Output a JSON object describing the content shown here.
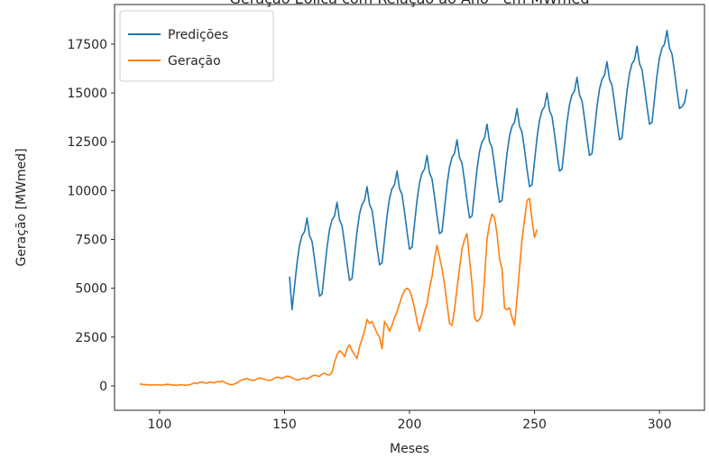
{
  "chart_data": {
    "type": "line",
    "title": "Geração Eólica com Relação ao Ano - em MWmed",
    "xlabel": "Meses",
    "ylabel": "Geração [MWmed]",
    "xlim": [
      82,
      318
    ],
    "ylim": [
      -1250,
      19530
    ],
    "xticks": [
      100,
      150,
      200,
      250,
      300
    ],
    "yticks": [
      0,
      2500,
      5000,
      7500,
      10000,
      12500,
      15000,
      17500
    ],
    "grid": false,
    "legend": "upper left",
    "series": [
      {
        "name": "Predições",
        "color": "#1f77b4",
        "x": [
          152,
          153,
          154,
          155,
          156,
          157,
          158,
          159,
          160,
          161,
          162,
          163,
          164,
          165,
          166,
          167,
          168,
          169,
          170,
          171,
          172,
          173,
          174,
          175,
          176,
          177,
          178,
          179,
          180,
          181,
          182,
          183,
          184,
          185,
          186,
          187,
          188,
          189,
          190,
          191,
          192,
          193,
          194,
          195,
          196,
          197,
          198,
          199,
          200,
          201,
          202,
          203,
          204,
          205,
          206,
          207,
          208,
          209,
          210,
          211,
          212,
          213,
          214,
          215,
          216,
          217,
          218,
          219,
          220,
          221,
          222,
          223,
          224,
          225,
          226,
          227,
          228,
          229,
          230,
          231,
          232,
          233,
          234,
          235,
          236,
          237,
          238,
          239,
          240,
          241,
          242,
          243,
          244,
          245,
          246,
          247,
          248,
          249,
          250,
          251,
          252,
          253,
          254,
          255,
          256,
          257,
          258,
          259,
          260,
          261,
          262,
          263,
          264,
          265,
          266,
          267,
          268,
          269,
          270,
          271,
          272,
          273,
          274,
          275,
          276,
          277,
          278,
          279,
          280,
          281,
          282,
          283,
          284,
          285,
          286,
          287,
          288,
          289,
          290,
          291,
          292,
          293,
          294,
          295,
          296,
          297,
          298,
          299,
          300,
          301,
          302,
          303,
          304,
          305,
          306,
          307,
          308,
          309,
          310,
          311
        ],
        "values": [
          5600,
          3900,
          5100,
          6300,
          7200,
          7700,
          7900,
          8600,
          7700,
          7400,
          6500,
          5500,
          4600,
          4700,
          5900,
          7100,
          8000,
          8500,
          8700,
          9400,
          8500,
          8200,
          7300,
          6300,
          5400,
          5500,
          6700,
          7900,
          8800,
          9300,
          9500,
          10200,
          9300,
          9000,
          8100,
          7100,
          6200,
          6300,
          7500,
          8700,
          9600,
          10100,
          10300,
          11000,
          10100,
          9800,
          8900,
          7900,
          7000,
          7100,
          8300,
          9500,
          10400,
          10900,
          11100,
          11800,
          10900,
          10600,
          9700,
          8700,
          7800,
          7900,
          9100,
          10300,
          11200,
          11700,
          11900,
          12600,
          11700,
          11400,
          10500,
          9500,
          8600,
          8700,
          9900,
          11100,
          12000,
          12500,
          12700,
          13400,
          12500,
          12200,
          11300,
          10300,
          9400,
          9500,
          10700,
          11900,
          12800,
          13300,
          13500,
          14200,
          13300,
          13000,
          12100,
          11100,
          10200,
          10300,
          11500,
          12700,
          13600,
          14100,
          14300,
          15000,
          14100,
          13800,
          12900,
          11900,
          11000,
          11100,
          12300,
          13500,
          14400,
          14900,
          15100,
          15800,
          14900,
          14600,
          13700,
          12700,
          11800,
          11900,
          13100,
          14300,
          15200,
          15700,
          15900,
          16600,
          15700,
          15400,
          14500,
          13500,
          12600,
          12700,
          13900,
          15100,
          16000,
          16500,
          16700,
          17400,
          16500,
          16200,
          15300,
          14300,
          13400,
          13500,
          14700,
          15900,
          16800,
          17300,
          17500,
          18200,
          17300,
          17000,
          16100,
          15100,
          14200,
          14300,
          14500,
          15200
        ]
      },
      {
        "name": "Geração",
        "color": "#ff7f0e",
        "x": [
          92,
          93,
          94,
          95,
          96,
          97,
          98,
          99,
          100,
          101,
          102,
          103,
          104,
          105,
          106,
          107,
          108,
          109,
          110,
          111,
          112,
          113,
          114,
          115,
          116,
          117,
          118,
          119,
          120,
          121,
          122,
          123,
          124,
          125,
          126,
          127,
          128,
          129,
          130,
          131,
          132,
          133,
          134,
          135,
          136,
          137,
          138,
          139,
          140,
          141,
          142,
          143,
          144,
          145,
          146,
          147,
          148,
          149,
          150,
          151,
          152,
          153,
          154,
          155,
          156,
          157,
          158,
          159,
          160,
          161,
          162,
          163,
          164,
          165,
          166,
          167,
          168,
          169,
          170,
          171,
          172,
          173,
          174,
          175,
          176,
          177,
          178,
          179,
          180,
          181,
          182,
          183,
          184,
          185,
          186,
          187,
          188,
          189,
          190,
          191,
          192,
          193,
          194,
          195,
          196,
          197,
          198,
          199,
          200,
          201,
          202,
          203,
          204,
          205,
          206,
          207,
          208,
          209,
          210,
          211,
          212,
          213,
          214,
          215,
          216,
          217,
          218,
          219,
          220,
          221,
          222,
          223,
          224,
          225,
          226,
          227,
          228,
          229,
          230,
          231,
          232,
          233,
          234,
          235,
          236,
          237,
          238,
          239,
          240,
          241,
          242,
          243,
          244,
          245,
          246,
          247,
          248,
          249,
          250,
          251
        ],
        "values": [
          100,
          80,
          60,
          70,
          50,
          40,
          60,
          50,
          50,
          40,
          60,
          80,
          70,
          50,
          40,
          30,
          50,
          60,
          40,
          30,
          60,
          100,
          150,
          120,
          180,
          200,
          160,
          140,
          200,
          180,
          150,
          220,
          200,
          250,
          180,
          120,
          80,
          60,
          100,
          150,
          250,
          300,
          350,
          380,
          320,
          280,
          300,
          350,
          400,
          380,
          350,
          300,
          280,
          320,
          400,
          450,
          420,
          380,
          450,
          500,
          480,
          420,
          350,
          300,
          320,
          380,
          400,
          350,
          420,
          500,
          550,
          520,
          480,
          600,
          650,
          580,
          550,
          700,
          1200,
          1600,
          1800,
          1700,
          1500,
          1900,
          2100,
          1800,
          1600,
          1400,
          2000,
          2400,
          2800,
          3400,
          3200,
          3300,
          3000,
          2700,
          2500,
          1900,
          3300,
          3100,
          2800,
          3100,
          3500,
          3800,
          4200,
          4600,
          4900,
          5000,
          4900,
          4500,
          4000,
          3300,
          2800,
          3300,
          3800,
          4200,
          5000,
          5600,
          6500,
          7200,
          6600,
          6000,
          5200,
          4200,
          3200,
          3100,
          3900,
          5000,
          6000,
          7000,
          7500,
          7800,
          6500,
          5200,
          3500,
          3300,
          3400,
          3700,
          5500,
          7500,
          8300,
          8800,
          8600,
          7800,
          6500,
          6000,
          4000,
          3900,
          4000,
          3500,
          3100,
          4500,
          6000,
          7500,
          8500,
          9500,
          9600,
          8500,
          7600,
          8000
        ]
      }
    ]
  }
}
